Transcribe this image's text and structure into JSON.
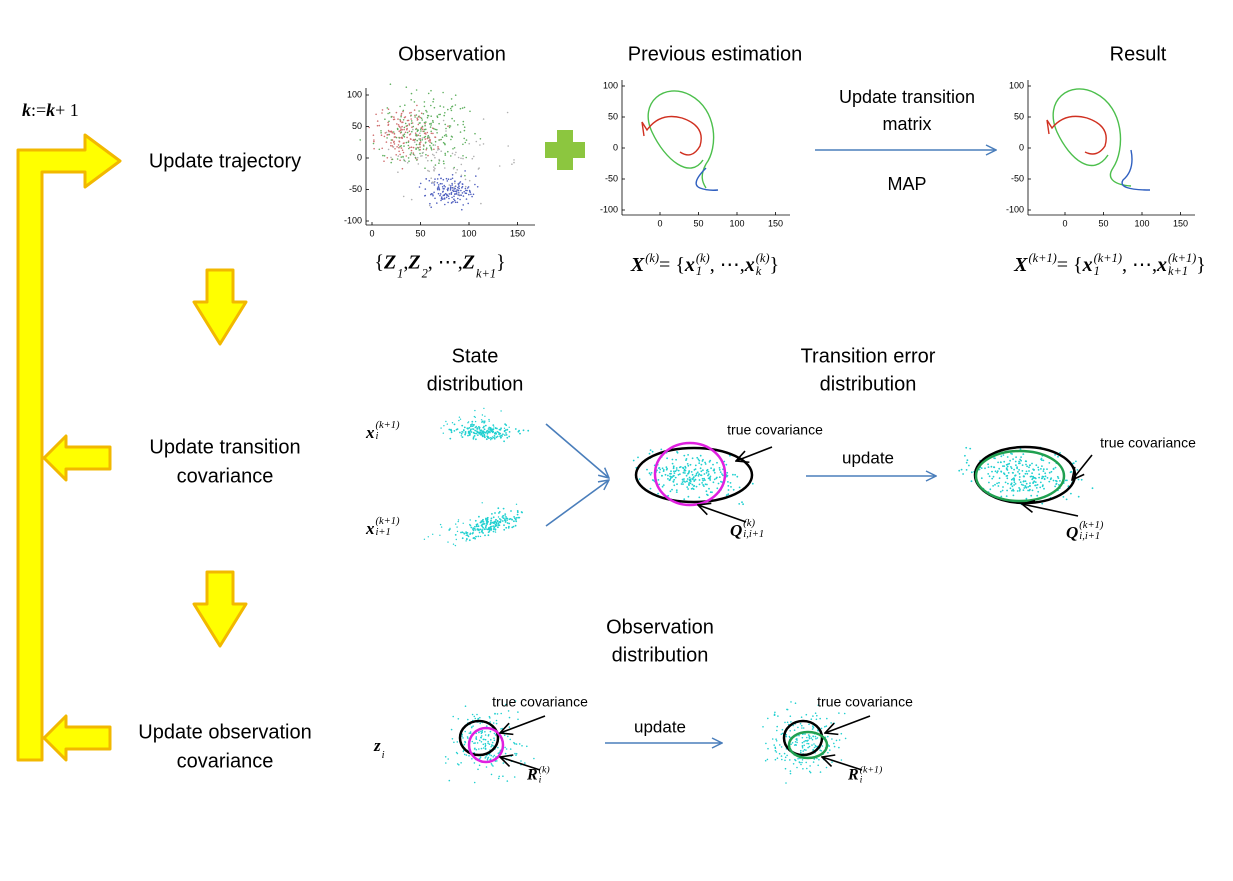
{
  "loop": {
    "counter": [
      {
        "t": "k"
      },
      {
        "t": " := "
      },
      {
        "t": "k"
      },
      {
        "t": " + 1"
      }
    ],
    "steps": [
      [
        "Update trajectory"
      ],
      [
        "Update transition",
        "covariance"
      ],
      [
        "Update observation",
        "covariance"
      ]
    ]
  },
  "trajectory": {
    "panels": [
      {
        "title": "Observation",
        "yticks": [
          100,
          50,
          0,
          -50,
          -100
        ],
        "xticks": [
          0,
          50,
          100,
          150
        ],
        "caption": [
          {
            "t": "{"
          },
          {
            "t": "Z",
            "sub": "1"
          },
          {
            "t": ", "
          },
          {
            "t": "Z",
            "sub": "2"
          },
          {
            "t": ", ⋯, "
          },
          {
            "t": "Z",
            "sub": "k+1"
          },
          {
            "t": "}"
          }
        ]
      },
      {
        "title": "Previous estimation",
        "yticks": [
          100,
          50,
          0,
          -50,
          -100
        ],
        "xticks": [
          0,
          50,
          100,
          150
        ],
        "caption": [
          {
            "t": "X",
            "sup": "(k)"
          },
          {
            "t": " = {"
          },
          {
            "t": "x",
            "sub": "1",
            "sup": "(k)"
          },
          {
            "t": ", ⋯, "
          },
          {
            "t": "x",
            "sub": "k",
            "sup": "(k)"
          },
          {
            "t": "}"
          }
        ]
      },
      {
        "title": "Result",
        "yticks": [
          100,
          50,
          0,
          -50,
          -100
        ],
        "xticks": [
          0,
          50,
          100,
          150
        ],
        "caption": [
          {
            "t": "X",
            "sup": "(k+1)"
          },
          {
            "t": " = {"
          },
          {
            "t": "x",
            "sub": "1",
            "sup": "(k+1)"
          },
          {
            "t": ", ⋯, "
          },
          {
            "t": "x",
            "sub": "k+1",
            "sup": "(k+1)"
          },
          {
            "t": "}"
          }
        ]
      }
    ],
    "arrow_label": [
      "Update transition",
      "matrix"
    ],
    "method": "MAP"
  },
  "transition": {
    "state_title": [
      "State",
      "distribution"
    ],
    "error_title": [
      "Transition error",
      "distribution"
    ],
    "state_labels": [
      [
        {
          "t": "x",
          "sub": "i",
          "sup": "(k+1)"
        }
      ],
      [
        {
          "t": "x",
          "sub": "i+1",
          "sup": "(k+1)"
        }
      ]
    ],
    "annotations": [
      "true covariance",
      "true covariance"
    ],
    "update": "update",
    "estimates": [
      [
        {
          "t": "Q",
          "sub": "i,i+1",
          "sup": "(k)"
        }
      ],
      [
        {
          "t": "Q",
          "sub": "i,i+1",
          "sup": "(k+1)"
        }
      ]
    ]
  },
  "observation": {
    "title": [
      "Observation",
      "distribution"
    ],
    "variable": [
      {
        "t": "z",
        "sub": "i"
      }
    ],
    "annotations": [
      "true covariance",
      "true covariance"
    ],
    "update": "update",
    "estimates": [
      [
        {
          "t": "R",
          "sub": "i",
          "sup": "(k)"
        }
      ],
      [
        {
          "t": "R",
          "sub": "i",
          "sup": "(k+1)"
        }
      ]
    ]
  }
}
